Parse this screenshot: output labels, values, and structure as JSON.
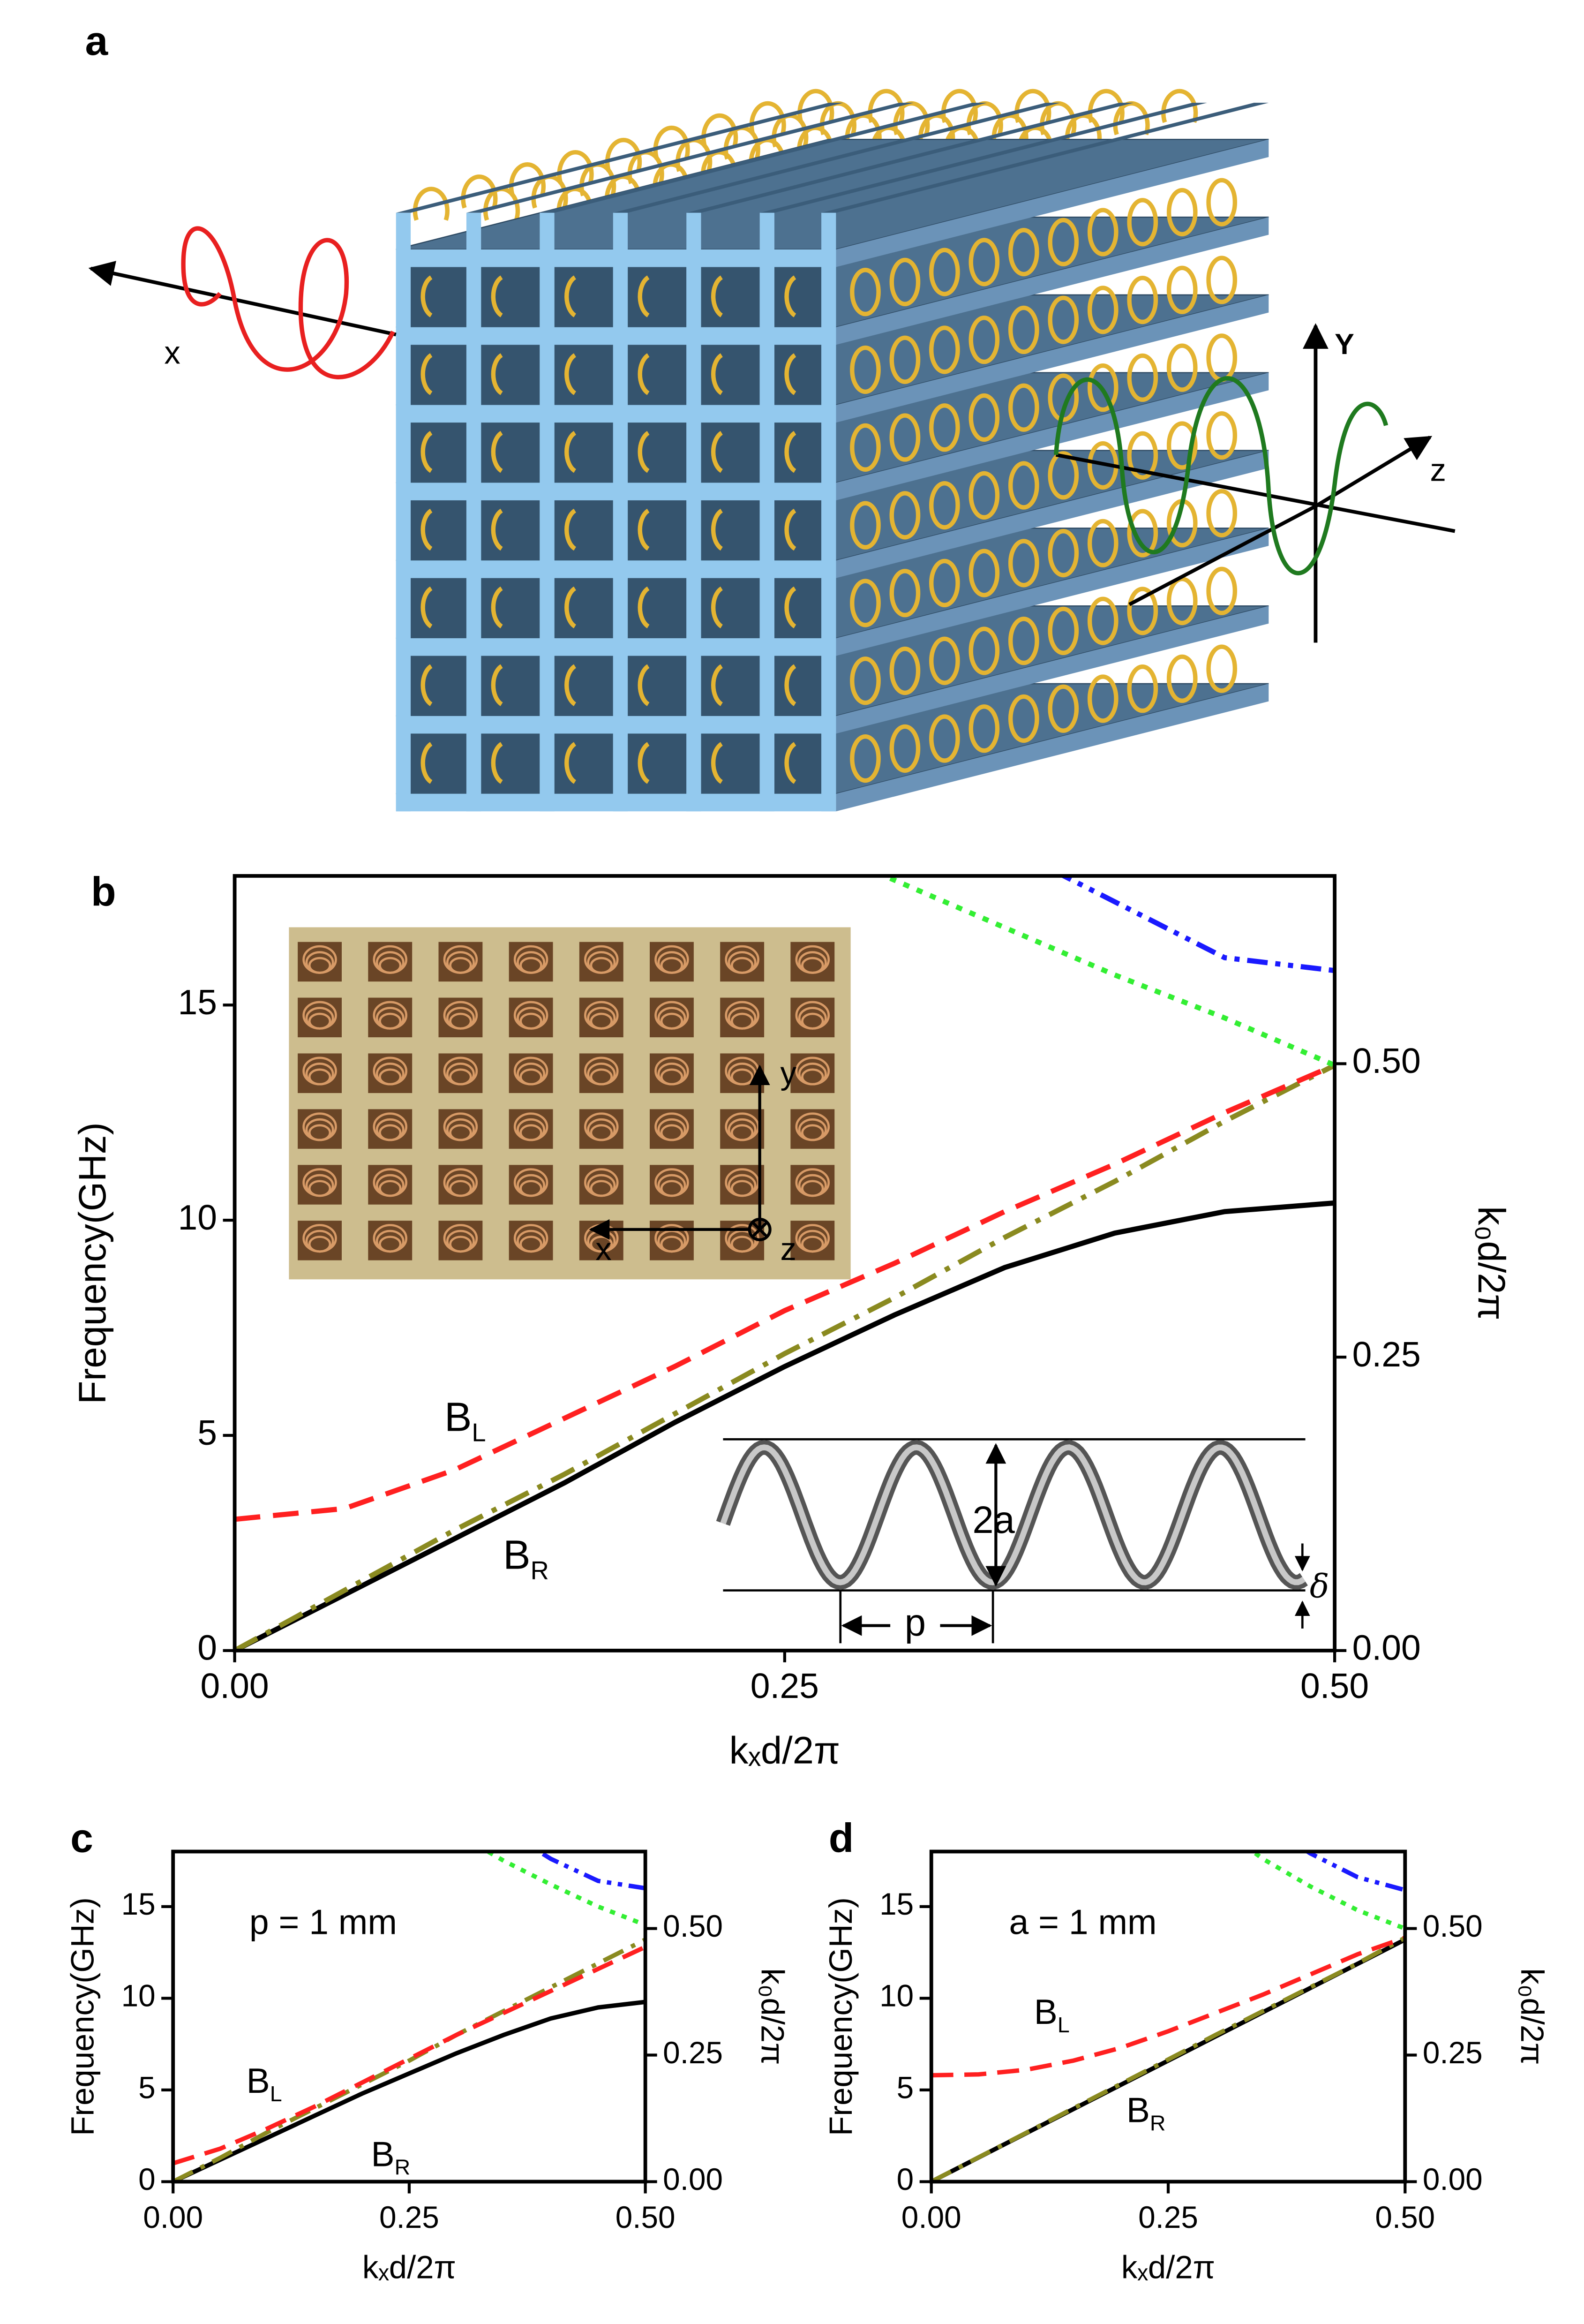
{
  "panel_a": {
    "label": "a",
    "axis_labels": {
      "x": "x",
      "y": "Y",
      "z": "z"
    }
  },
  "chart_data": [
    {
      "type": "line",
      "panel_label": "b",
      "x": [
        0,
        0.05,
        0.1,
        0.15,
        0.2,
        0.25,
        0.3,
        0.35,
        0.4,
        0.45,
        0.5
      ],
      "series": [
        {
          "color": "#000000",
          "style": "solid",
          "values": [
            0,
            1.3,
            2.6,
            3.9,
            5.3,
            6.6,
            7.8,
            8.9,
            9.7,
            10.2,
            10.4
          ]
        },
        {
          "color": "#8a8a20",
          "style": "dashdot",
          "values": [
            0,
            1.4,
            2.8,
            4.1,
            5.5,
            6.9,
            8.2,
            9.6,
            10.9,
            12.3,
            13.6
          ]
        },
        {
          "color": "#ff2020",
          "style": "dashed",
          "values": [
            3.05,
            3.3,
            4.2,
            5.4,
            6.6,
            7.9,
            9.0,
            10.2,
            11.3,
            12.5,
            13.6
          ]
        },
        {
          "color": "#33ee33",
          "style": "dotted",
          "values": [
            null,
            null,
            null,
            null,
            null,
            19.0,
            17.9,
            16.8,
            15.7,
            14.7,
            13.6
          ]
        },
        {
          "color": "#1a1aff",
          "style": "dashdotdot",
          "values": [
            null,
            null,
            null,
            null,
            null,
            null,
            null,
            18.7,
            17.4,
            16.1,
            15.8
          ]
        }
      ],
      "xlim": [
        0,
        0.5
      ],
      "xticks": [
        {
          "value": 0,
          "label": "0.00"
        },
        {
          "value": 0.25,
          "label": "0.25"
        },
        {
          "value": 0.5,
          "label": "0.50"
        }
      ],
      "ylim": [
        0,
        18
      ],
      "yticks": [
        0,
        5,
        10,
        15
      ],
      "y2lim": [
        0,
        0.66
      ],
      "y2ticks": [
        {
          "value": 0,
          "label": "0.00"
        },
        {
          "value": 0.25,
          "label": "0.25"
        },
        {
          "value": 0.5,
          "label": "0.50"
        }
      ],
      "xlabel": "kₓd/2π",
      "ylabel": "Frequency(GHz)",
      "y2label": "k₀d/2π",
      "annotations": [
        {
          "text": "B",
          "subscript": "L"
        },
        {
          "text": "B",
          "subscript": "R"
        }
      ],
      "inset_labels": {
        "x": "x",
        "y": "y",
        "z": "z"
      },
      "helix_labels": {
        "diameter": "2a",
        "pitch": "p",
        "wire": "δ"
      }
    },
    {
      "type": "line",
      "panel_label": "c",
      "x": [
        0,
        0.05,
        0.1,
        0.15,
        0.2,
        0.25,
        0.3,
        0.35,
        0.4,
        0.45,
        0.5
      ],
      "series": [
        {
          "color": "#000000",
          "style": "solid",
          "values": [
            0,
            1.2,
            2.4,
            3.6,
            4.8,
            5.9,
            7.0,
            8.0,
            8.9,
            9.5,
            9.8
          ]
        },
        {
          "color": "#8a8a20",
          "style": "dashdot",
          "values": [
            0,
            1.3,
            2.7,
            4.0,
            5.3,
            6.6,
            8.0,
            9.3,
            10.6,
            11.9,
            13.2
          ]
        },
        {
          "color": "#ff2020",
          "style": "dashed",
          "values": [
            1.0,
            1.8,
            2.9,
            4.1,
            5.4,
            6.7,
            8.0,
            9.2,
            10.4,
            11.6,
            12.8
          ]
        },
        {
          "color": "#33ee33",
          "style": "dotted",
          "values": [
            null,
            null,
            null,
            null,
            null,
            null,
            19.0,
            17.5,
            16.2,
            15.0,
            14.0
          ]
        },
        {
          "color": "#1a1aff",
          "style": "dashdotdot",
          "values": [
            null,
            null,
            null,
            null,
            null,
            null,
            null,
            19.2,
            17.6,
            16.4,
            16.0
          ]
        }
      ],
      "xlim": [
        0,
        0.5
      ],
      "xticks": [
        {
          "value": 0,
          "label": "0.00"
        },
        {
          "value": 0.25,
          "label": "0.25"
        },
        {
          "value": 0.5,
          "label": "0.50"
        }
      ],
      "ylim": [
        0,
        18
      ],
      "yticks": [
        0,
        5,
        10,
        15
      ],
      "y2lim": [
        0,
        0.652
      ],
      "y2ticks": [
        {
          "value": 0,
          "label": "0.00"
        },
        {
          "value": 0.25,
          "label": "0.25"
        },
        {
          "value": 0.5,
          "label": "0.50"
        }
      ],
      "xlabel": "kₓd/2π",
      "ylabel": "Frequency(GHz)",
      "y2label": "k₀d/2π",
      "annotations": [
        "p = 1 mm",
        {
          "text": "B",
          "subscript": "L"
        },
        {
          "text": "B",
          "subscript": "R"
        }
      ]
    },
    {
      "type": "line",
      "panel_label": "d",
      "x": [
        0,
        0.05,
        0.1,
        0.15,
        0.2,
        0.25,
        0.3,
        0.35,
        0.4,
        0.45,
        0.5
      ],
      "series": [
        {
          "color": "#000000",
          "style": "solid",
          "values": [
            0,
            1.32,
            2.64,
            3.96,
            5.28,
            6.6,
            7.92,
            9.24,
            10.56,
            11.88,
            13.2
          ]
        },
        {
          "color": "#8a8a20",
          "style": "dashdot",
          "values": [
            0,
            1.33,
            2.66,
            4.0,
            5.33,
            6.66,
            8.0,
            9.3,
            10.6,
            11.9,
            13.3
          ]
        },
        {
          "color": "#ff2020",
          "style": "dashed",
          "values": [
            5.8,
            5.85,
            6.1,
            6.6,
            7.3,
            8.2,
            9.2,
            10.2,
            11.3,
            12.4,
            13.3
          ]
        },
        {
          "color": "#33ee33",
          "style": "dotted",
          "values": [
            null,
            null,
            null,
            null,
            null,
            null,
            19.5,
            17.6,
            16.1,
            14.8,
            13.8
          ]
        },
        {
          "color": "#1a1aff",
          "style": "dashdotdot",
          "values": [
            null,
            null,
            null,
            null,
            null,
            null,
            null,
            19.6,
            17.9,
            16.6,
            15.9
          ]
        }
      ],
      "xlim": [
        0,
        0.5
      ],
      "xticks": [
        {
          "value": 0,
          "label": "0.00"
        },
        {
          "value": 0.25,
          "label": "0.25"
        },
        {
          "value": 0.5,
          "label": "0.50"
        }
      ],
      "ylim": [
        0,
        18
      ],
      "yticks": [
        0,
        5,
        10,
        15
      ],
      "y2lim": [
        0,
        0.652
      ],
      "y2ticks": [
        {
          "value": 0,
          "label": "0.00"
        },
        {
          "value": 0.25,
          "label": "0.25"
        },
        {
          "value": 0.5,
          "label": "0.50"
        }
      ],
      "xlabel": "kₓd/2π",
      "ylabel": "Frequency(GHz)",
      "y2label": "k₀d/2π",
      "annotations": [
        "a = 1 mm",
        {
          "text": "B",
          "subscript": "L"
        },
        {
          "text": "B",
          "subscript": "R"
        }
      ]
    }
  ]
}
